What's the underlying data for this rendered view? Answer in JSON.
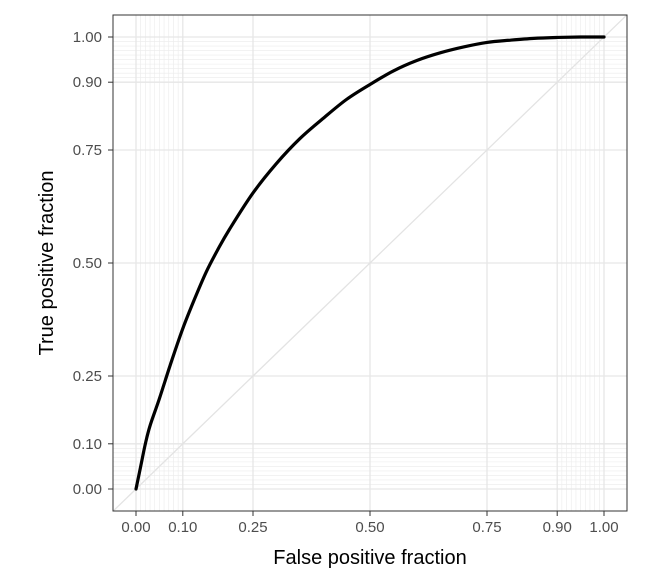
{
  "chart_data": {
    "type": "line",
    "title": "",
    "xlabel": "False positive fraction",
    "ylabel": "True positive fraction",
    "xlim": [
      0,
      1
    ],
    "ylim": [
      0,
      1
    ],
    "x_ticks": [
      0,
      0.1,
      0.25,
      0.5,
      0.75,
      0.9,
      1
    ],
    "x_tick_labels": [
      "0.00",
      "0.10",
      "0.25",
      "0.50",
      "0.75",
      "0.90",
      "1.00"
    ],
    "y_ticks": [
      0,
      0.1,
      0.25,
      0.5,
      0.75,
      0.9,
      1
    ],
    "y_tick_labels": [
      "0.00",
      "0.10",
      "0.25",
      "0.50",
      "0.75",
      "0.90",
      "1.00"
    ],
    "minor_grid": [
      0.01,
      0.02,
      0.03,
      0.04,
      0.05,
      0.06,
      0.07,
      0.08,
      0.09,
      0.91,
      0.92,
      0.93,
      0.94,
      0.95,
      0.96,
      0.97,
      0.98,
      0.99
    ],
    "grid": true,
    "reference_line": {
      "x": [
        0,
        1
      ],
      "y": [
        0,
        1
      ]
    },
    "series": [
      {
        "x": [
          0,
          0.01,
          0.02,
          0.03,
          0.05,
          0.075,
          0.1,
          0.125,
          0.15,
          0.175,
          0.2,
          0.25,
          0.3,
          0.35,
          0.4,
          0.45,
          0.5,
          0.55,
          0.6,
          0.65,
          0.7,
          0.75,
          0.8,
          0.85,
          0.9,
          0.95,
          1.0
        ],
        "y": [
          0,
          0.05,
          0.1,
          0.14,
          0.2,
          0.28,
          0.355,
          0.42,
          0.48,
          0.53,
          0.575,
          0.655,
          0.72,
          0.775,
          0.82,
          0.862,
          0.895,
          0.925,
          0.948,
          0.965,
          0.978,
          0.988,
          0.993,
          0.997,
          0.999,
          1.0,
          1.0
        ],
        "color": "#000000"
      }
    ]
  }
}
